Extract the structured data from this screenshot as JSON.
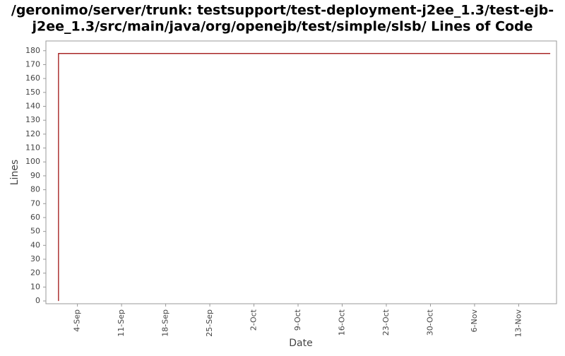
{
  "chart_data": {
    "type": "line",
    "title": [
      "/geronimo/server/trunk: testsupport/test-deployment-j2ee_1.3/test-ejb-",
      "j2ee_1.3/src/main/java/org/openejb/test/simple/slsb/ Lines of Code"
    ],
    "x_label": "Date",
    "y_label": "Lines",
    "x": [
      "1-Sep",
      "1-Sep",
      "18-Nov"
    ],
    "series": [
      {
        "color": "#990000",
        "values": [
          0,
          178,
          178
        ]
      }
    ],
    "xlim": [
      "30-Aug",
      "19-Nov"
    ],
    "xticks": [
      "4-Sep",
      "11-Sep",
      "18-Sep",
      "25-Sep",
      "2-Oct",
      "9-Oct",
      "16-Oct",
      "23-Oct",
      "30-Oct",
      "6-Nov",
      "13-Nov"
    ],
    "ylim": [
      -2,
      187
    ],
    "yticks": [
      0,
      10,
      20,
      30,
      40,
      50,
      60,
      70,
      80,
      90,
      100,
      110,
      120,
      130,
      140,
      150,
      160,
      170,
      180
    ]
  }
}
